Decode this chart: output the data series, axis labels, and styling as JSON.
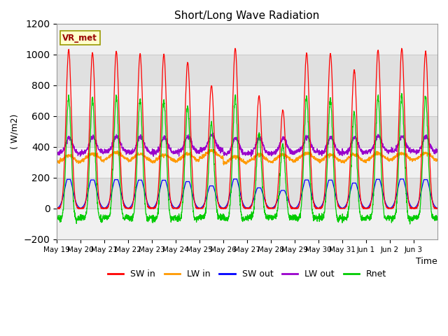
{
  "title": "Short/Long Wave Radiation",
  "ylabel": "( W/m2)",
  "xlabel": "Time",
  "ylim": [
    -200,
    1200
  ],
  "yticks": [
    -200,
    0,
    200,
    400,
    600,
    800,
    1000,
    1200
  ],
  "n_days": 16,
  "legend_labels": [
    "SW in",
    "LW in",
    "SW out",
    "LW out",
    "Rnet"
  ],
  "legend_colors": [
    "#ff0000",
    "#ff9900",
    "#0000ff",
    "#9900cc",
    "#00cc00"
  ],
  "site_label": "VR_met",
  "x_tick_labels": [
    "May 19",
    "May 20",
    "May 21",
    "May 22",
    "May 23",
    "May 24",
    "May 25",
    "May 26",
    "May 27",
    "May 28",
    "May 29",
    "May 30",
    "May 31",
    "Jun 1",
    "Jun 2",
    "Jun 3"
  ],
  "day_peaks_swin": [
    1030,
    1010,
    1020,
    1005,
    1000,
    950,
    800,
    1040,
    730,
    640,
    1010,
    1005,
    900,
    1030,
    1040,
    1020
  ],
  "lw_in_base": [
    300,
    310,
    320,
    310,
    305,
    310,
    330,
    295,
    305,
    305,
    315,
    305,
    305,
    315,
    315,
    315
  ],
  "lw_out_base": [
    360,
    365,
    370,
    365,
    362,
    368,
    380,
    355,
    358,
    358,
    368,
    362,
    362,
    370,
    370,
    368
  ]
}
